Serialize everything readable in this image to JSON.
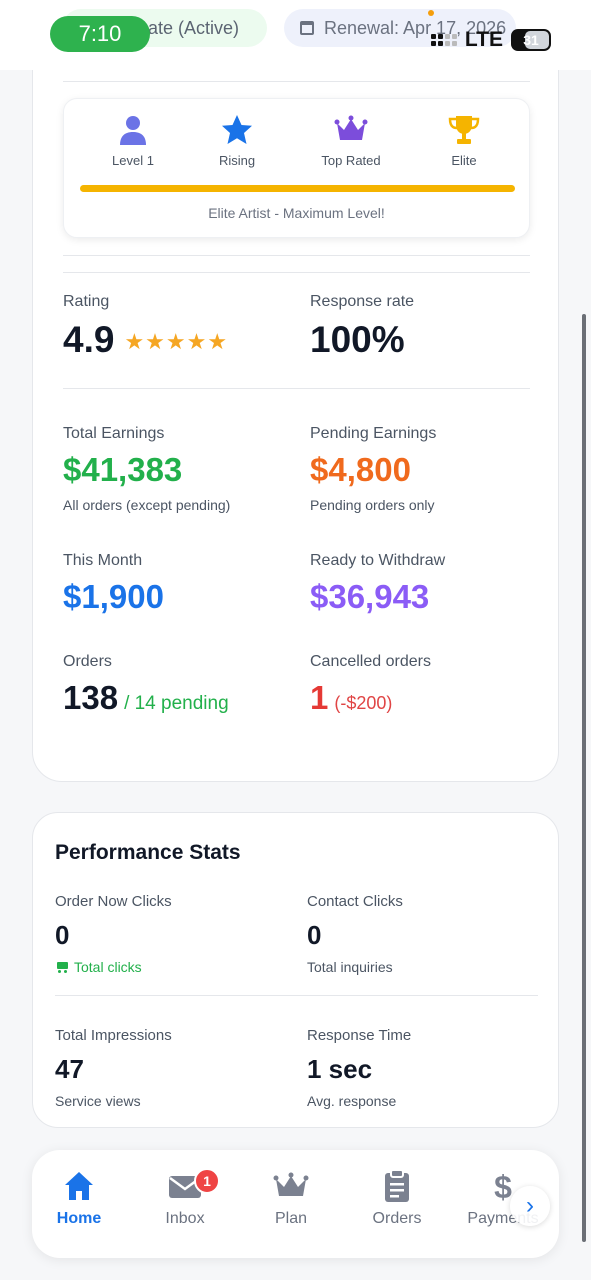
{
  "status_bar": {
    "time": "7:10",
    "plan_pill": "ate (Active)",
    "renewal_pill": "Renewal: Apr 17, 2026",
    "network": "LTE",
    "battery": "31"
  },
  "levels": {
    "items": [
      {
        "label": "Level 1",
        "icon": "user-icon"
      },
      {
        "label": "Rising",
        "icon": "star-icon"
      },
      {
        "label": "Top Rated",
        "icon": "crown-icon"
      },
      {
        "label": "Elite",
        "icon": "trophy-icon"
      }
    ],
    "progress_fraction": 1.0,
    "caption": "Elite Artist - Maximum Level!"
  },
  "stats": {
    "rating": {
      "label": "Rating",
      "value": "4.9",
      "stars": "★★★★★"
    },
    "response_rate": {
      "label": "Response rate",
      "value": "100%"
    },
    "total_earnings": {
      "label": "Total Earnings",
      "value": "$41,383",
      "sub": "All orders (except pending)"
    },
    "pending_earnings": {
      "label": "Pending Earnings",
      "value": "$4,800",
      "sub": "Pending orders only"
    },
    "this_month": {
      "label": "This Month",
      "value": "$1,900"
    },
    "ready_to_withdraw": {
      "label": "Ready to Withdraw",
      "value": "$36,943"
    },
    "orders": {
      "label": "Orders",
      "value": "138",
      "note": "/ 14 pending"
    },
    "cancelled": {
      "label": "Cancelled orders",
      "value": "1",
      "note": "(-$200)"
    }
  },
  "performance": {
    "title": "Performance Stats",
    "order_now": {
      "label": "Order Now Clicks",
      "value": "0",
      "sub": "Total clicks"
    },
    "contact": {
      "label": "Contact Clicks",
      "value": "0",
      "sub": "Total inquiries"
    },
    "impressions": {
      "label": "Total Impressions",
      "value": "47",
      "sub": "Service views"
    },
    "response_time": {
      "label": "Response Time",
      "value": "1 sec",
      "sub": "Avg. response"
    }
  },
  "nav": {
    "items": [
      {
        "label": "Home",
        "icon": "home-icon",
        "active": true
      },
      {
        "label": "Inbox",
        "icon": "mail-icon",
        "badge": "1"
      },
      {
        "label": "Plan",
        "icon": "crown-icon"
      },
      {
        "label": "Orders",
        "icon": "clipboard-icon"
      },
      {
        "label": "Payments",
        "icon": "dollar-icon"
      }
    ],
    "scroll_symbol": "›"
  },
  "colors": {
    "accent_blue": "#1a73e8",
    "green": "#22b04b",
    "orange": "#f06a1d",
    "purple": "#8b5cf6",
    "red": "#e53935",
    "gold": "#f5b400"
  }
}
